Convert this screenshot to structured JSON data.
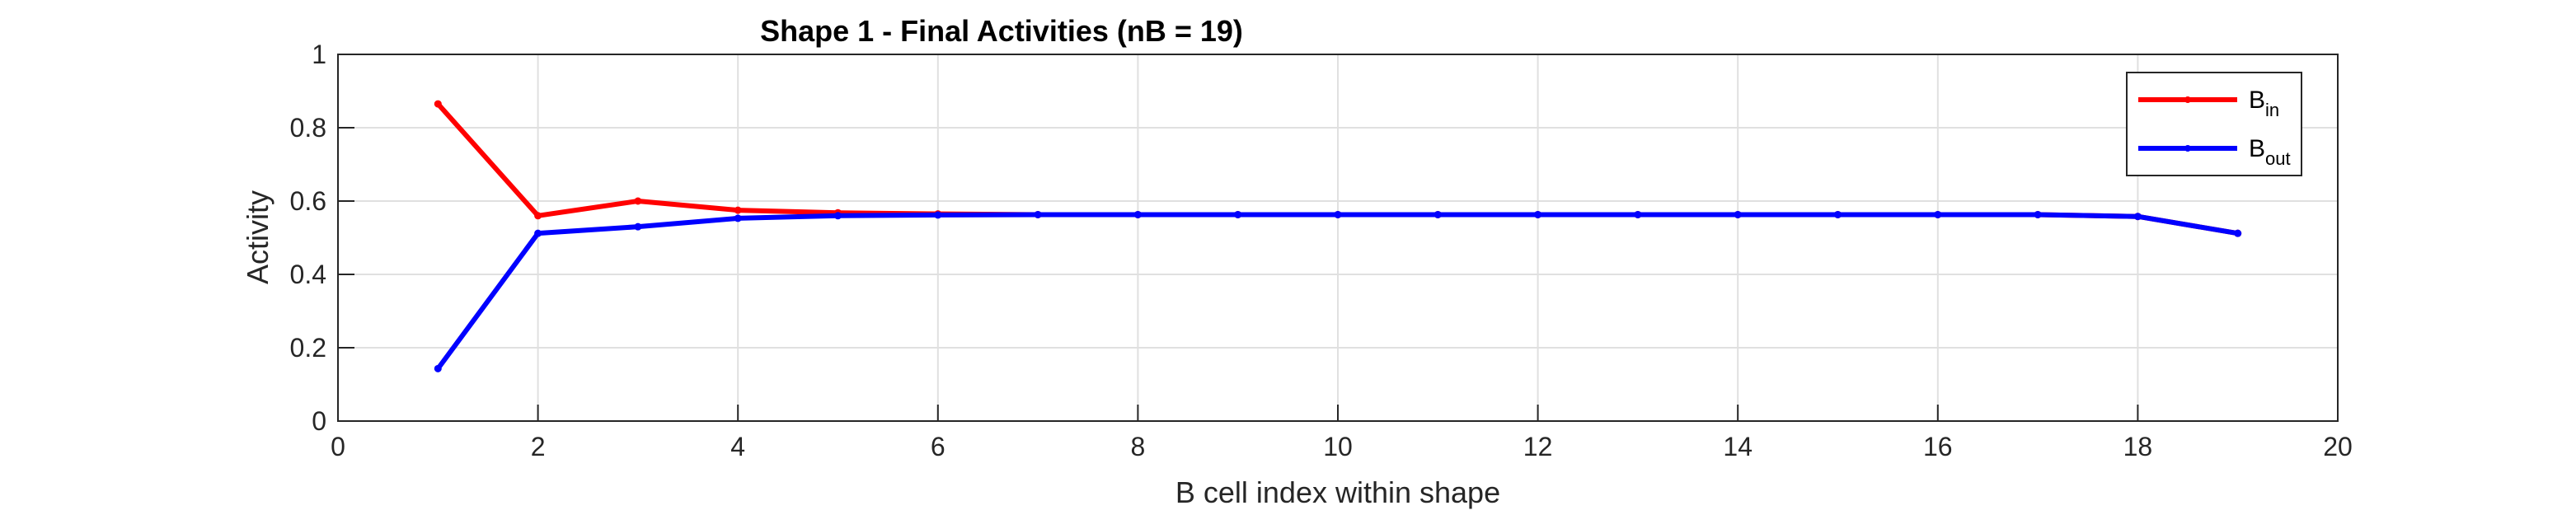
{
  "chart_data": {
    "type": "line",
    "title": "Shape 1 - Final Activities (nB = 19)",
    "xlabel": "B cell index within shape",
    "ylabel": "Activity",
    "xlim": [
      0,
      20
    ],
    "ylim": [
      0,
      1
    ],
    "xticks": [
      "0",
      "2",
      "4",
      "6",
      "8",
      "10",
      "12",
      "14",
      "16",
      "18",
      "20"
    ],
    "yticks": [
      "0",
      "0.2",
      "0.4",
      "0.6",
      "0.8",
      "1"
    ],
    "grid": true,
    "legend_position": "top-right",
    "x": [
      1,
      2,
      3,
      4,
      5,
      6,
      7,
      8,
      9,
      10,
      11,
      12,
      13,
      14,
      15,
      16,
      17,
      18,
      19
    ],
    "series": [
      {
        "name": "B",
        "subscript": "in",
        "color": "#ff0000",
        "values": [
          0.865,
          0.56,
          0.6,
          0.575,
          0.568,
          0.565,
          0.563,
          0.563,
          0.563,
          0.563,
          0.563,
          0.563,
          0.563,
          0.563,
          0.563,
          0.563,
          0.563,
          0.558,
          0.512
        ]
      },
      {
        "name": "B",
        "subscript": "out",
        "color": "#0000ff",
        "values": [
          0.143,
          0.512,
          0.53,
          0.553,
          0.56,
          0.562,
          0.563,
          0.563,
          0.563,
          0.563,
          0.563,
          0.563,
          0.563,
          0.563,
          0.563,
          0.563,
          0.563,
          0.558,
          0.512
        ]
      }
    ]
  }
}
